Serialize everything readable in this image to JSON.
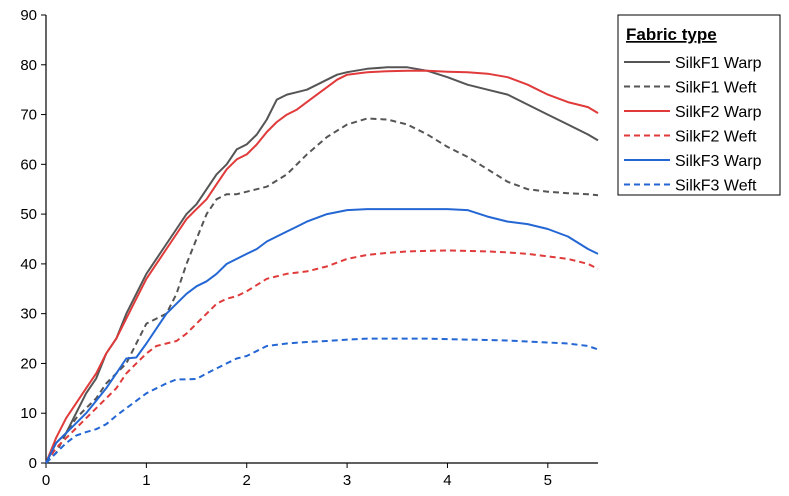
{
  "chart_data": {
    "type": "line",
    "title": "",
    "xlabel": "",
    "ylabel": "",
    "xlim": [
      0,
      5.5
    ],
    "ylim": [
      0,
      90
    ],
    "xticks": [
      0,
      1,
      2,
      3,
      4,
      5
    ],
    "yticks": [
      0,
      10,
      20,
      30,
      40,
      50,
      60,
      70,
      80,
      90
    ],
    "grid": false,
    "legend": {
      "title": "Fabric type",
      "placement": "right"
    },
    "series": [
      {
        "name": "SilkF1 Warp",
        "color": "#555555",
        "dash": "solid",
        "x": [
          0,
          0.1,
          0.2,
          0.3,
          0.4,
          0.5,
          0.6,
          0.7,
          0.8,
          0.9,
          1.0,
          1.1,
          1.2,
          1.3,
          1.4,
          1.5,
          1.6,
          1.7,
          1.8,
          1.9,
          2.0,
          2.1,
          2.2,
          2.3,
          2.4,
          2.5,
          2.6,
          2.7,
          2.8,
          2.9,
          3.0,
          3.2,
          3.4,
          3.6,
          3.8,
          4.0,
          4.2,
          4.4,
          4.6,
          4.8,
          5.0,
          5.2,
          5.4,
          5.5
        ],
        "y": [
          0,
          4,
          6,
          10,
          14,
          17,
          22,
          25,
          30,
          34,
          38,
          41,
          44,
          47,
          50,
          52,
          55,
          58,
          60,
          63,
          64,
          66,
          69,
          73,
          74,
          74.5,
          75,
          76,
          77,
          78,
          78.5,
          79.2,
          79.5,
          79.5,
          78.8,
          77.5,
          76,
          75,
          74,
          72,
          70,
          68,
          66,
          64.8
        ]
      },
      {
        "name": "SilkF1 Weft",
        "color": "#555555",
        "dash": "dashed",
        "x": [
          0,
          0.1,
          0.2,
          0.3,
          0.4,
          0.5,
          0.6,
          0.7,
          0.8,
          0.9,
          1.0,
          1.1,
          1.2,
          1.3,
          1.4,
          1.5,
          1.6,
          1.7,
          1.8,
          1.9,
          2.0,
          2.2,
          2.4,
          2.6,
          2.8,
          3.0,
          3.2,
          3.4,
          3.6,
          3.8,
          4.0,
          4.2,
          4.4,
          4.6,
          4.8,
          5.0,
          5.2,
          5.4,
          5.5
        ],
        "y": [
          0,
          2,
          6,
          9,
          11,
          13,
          16,
          18,
          20,
          24,
          28,
          29,
          30,
          34,
          40,
          45,
          50,
          53,
          54,
          54,
          54.5,
          55.5,
          58,
          62,
          65.5,
          68,
          69.2,
          69,
          68,
          66,
          63.5,
          61.5,
          59,
          56.5,
          55,
          54.5,
          54.2,
          54,
          53.8
        ]
      },
      {
        "name": "SilkF2 Warp",
        "color": "#e03a3a",
        "dash": "solid",
        "x": [
          0,
          0.1,
          0.2,
          0.3,
          0.4,
          0.5,
          0.6,
          0.7,
          0.8,
          0.9,
          1.0,
          1.1,
          1.2,
          1.3,
          1.4,
          1.5,
          1.6,
          1.7,
          1.8,
          1.9,
          2.0,
          2.1,
          2.2,
          2.3,
          2.4,
          2.5,
          2.6,
          2.7,
          2.8,
          2.9,
          3.0,
          3.2,
          3.4,
          3.6,
          3.8,
          4.0,
          4.2,
          4.4,
          4.6,
          4.8,
          5.0,
          5.2,
          5.4,
          5.5
        ],
        "y": [
          0,
          5,
          9,
          12,
          15,
          18,
          22,
          25,
          29,
          33,
          37,
          40,
          43,
          46,
          49,
          51,
          53,
          56,
          59,
          61,
          62,
          64,
          66.5,
          68.5,
          70,
          71,
          72.5,
          74,
          75.5,
          77,
          78,
          78.5,
          78.7,
          78.8,
          78.8,
          78.6,
          78.5,
          78.2,
          77.5,
          76,
          74,
          72.5,
          71.5,
          70.3
        ]
      },
      {
        "name": "SilkF2 Weft",
        "color": "#e03a3a",
        "dash": "dashed",
        "x": [
          0,
          0.1,
          0.2,
          0.3,
          0.4,
          0.5,
          0.6,
          0.7,
          0.8,
          0.9,
          1.0,
          1.1,
          1.2,
          1.3,
          1.4,
          1.5,
          1.6,
          1.7,
          1.8,
          1.9,
          2.0,
          2.2,
          2.4,
          2.6,
          2.8,
          3.0,
          3.2,
          3.4,
          3.6,
          3.8,
          4.0,
          4.2,
          4.4,
          4.6,
          4.8,
          5.0,
          5.2,
          5.4,
          5.5
        ],
        "y": [
          0,
          3,
          5,
          7,
          9,
          11,
          13,
          15,
          18,
          20,
          22,
          23.5,
          24,
          24.5,
          26,
          28,
          30,
          32,
          33,
          33.5,
          34.5,
          37,
          38,
          38.5,
          39.5,
          41,
          41.8,
          42.2,
          42.5,
          42.6,
          42.7,
          42.6,
          42.5,
          42.3,
          42,
          41.5,
          41,
          40,
          39
        ]
      },
      {
        "name": "SilkF3 Warp",
        "color": "#2467d4",
        "dash": "solid",
        "x": [
          0,
          0.1,
          0.2,
          0.3,
          0.4,
          0.5,
          0.6,
          0.7,
          0.8,
          0.9,
          1.0,
          1.1,
          1.2,
          1.3,
          1.4,
          1.5,
          1.6,
          1.7,
          1.8,
          1.9,
          2.0,
          2.1,
          2.2,
          2.3,
          2.4,
          2.5,
          2.6,
          2.8,
          3.0,
          3.2,
          3.4,
          3.6,
          3.8,
          4.0,
          4.2,
          4.4,
          4.6,
          4.8,
          5.0,
          5.2,
          5.4,
          5.5
        ],
        "y": [
          0,
          4,
          6,
          8,
          10,
          12.5,
          15,
          18,
          21,
          21.2,
          24,
          27,
          30,
          32,
          34,
          35.5,
          36.5,
          38,
          40,
          41,
          42,
          43,
          44.5,
          45.5,
          46.5,
          47.5,
          48.5,
          50,
          50.8,
          51,
          51,
          51,
          51,
          51,
          50.8,
          49.5,
          48.5,
          48,
          47,
          45.5,
          43,
          42
        ]
      },
      {
        "name": "SilkF3 Weft",
        "color": "#2467d4",
        "dash": "dashed",
        "x": [
          0,
          0.1,
          0.2,
          0.3,
          0.4,
          0.5,
          0.6,
          0.7,
          0.8,
          0.9,
          1.0,
          1.1,
          1.2,
          1.3,
          1.4,
          1.5,
          1.6,
          1.7,
          1.8,
          1.9,
          2.0,
          2.2,
          2.4,
          2.6,
          2.8,
          3.0,
          3.2,
          3.4,
          3.6,
          3.8,
          4.0,
          4.2,
          4.4,
          4.6,
          4.8,
          5.0,
          5.2,
          5.4,
          5.5
        ],
        "y": [
          0,
          2,
          4,
          5.5,
          6.2,
          6.8,
          7.8,
          9.5,
          11,
          12.5,
          14,
          15,
          16,
          16.8,
          16.8,
          16.9,
          18,
          19,
          20,
          21,
          21.5,
          23.5,
          24,
          24.3,
          24.5,
          24.8,
          25,
          25,
          25,
          25,
          24.9,
          24.8,
          24.7,
          24.6,
          24.4,
          24.2,
          24,
          23.5,
          22.8
        ]
      }
    ]
  }
}
